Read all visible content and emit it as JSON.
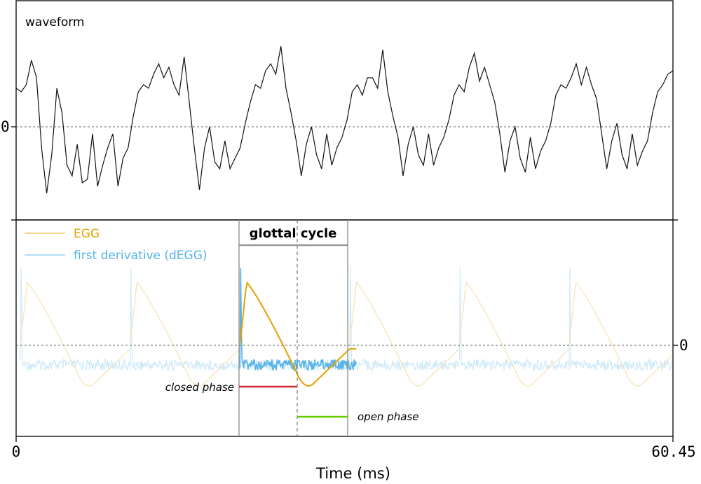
{
  "chart_data": {
    "type": "line",
    "x_axis": {
      "label": "Time (ms)",
      "min": 0,
      "max": 60.45,
      "min_label": "0",
      "max_label": "60.45"
    },
    "waveform": {
      "title": "waveform",
      "zero_label": "0",
      "samples": [
        0.55,
        0.5,
        0.6,
        0.95,
        0.7,
        -0.3,
        -0.95,
        -0.4,
        0.55,
        0.2,
        -0.55,
        -0.7,
        -0.25,
        -0.8,
        -0.75,
        -0.1,
        -0.85,
        -0.55,
        -0.3,
        -0.1,
        -0.85,
        -0.45,
        -0.3,
        0.15,
        0.5,
        0.6,
        0.55,
        0.75,
        0.9,
        0.7,
        0.85,
        0.6,
        0.45,
        1.0,
        0.35,
        -0.3,
        -0.9,
        -0.3,
        0.0,
        -0.5,
        -0.6,
        -0.2,
        -0.6,
        -0.45,
        -0.3,
        0.05,
        0.35,
        0.6,
        0.55,
        0.8,
        0.9,
        0.75,
        1.15,
        0.55,
        0.2,
        -0.2,
        -0.7,
        -0.25,
        0.0,
        -0.4,
        -0.6,
        -0.1,
        -0.55,
        -0.3,
        -0.15,
        0.1,
        0.5,
        0.6,
        0.45,
        0.7,
        0.7,
        0.55,
        1.1,
        0.5,
        0.15,
        -0.15,
        -0.7,
        -0.25,
        0.0,
        -0.4,
        -0.55,
        -0.1,
        -0.55,
        -0.3,
        -0.15,
        0.1,
        0.45,
        0.6,
        0.5,
        0.85,
        1.05,
        0.65,
        0.85,
        0.6,
        0.35,
        -0.1,
        -0.65,
        -0.2,
        0.0,
        -0.45,
        -0.65,
        -0.15,
        -0.6,
        -0.35,
        -0.2,
        0.05,
        0.45,
        0.6,
        0.55,
        0.7,
        0.9,
        0.6,
        0.85,
        0.6,
        0.4,
        -0.1,
        -0.6,
        -0.2,
        0.05,
        -0.4,
        -0.6,
        -0.1,
        -0.55,
        -0.35,
        -0.2,
        0.2,
        0.5,
        0.6,
        0.75,
        0.8
      ]
    },
    "egg": {
      "legend": [
        {
          "label": "EGG",
          "color": "#e6a000"
        },
        {
          "label": "first derivative (dEGG)",
          "color": "#56b4e9"
        }
      ],
      "zero_label": "0",
      "cycle_start_ms": 0.4,
      "period_ms": 10.1,
      "highlight_start_ms": 20.6,
      "highlight_end_ms": 31.3,
      "closing_instant_ms": 20.6,
      "opening_instant_ms": 26.1,
      "next_closing_ms": 30.7
    },
    "annotations": {
      "cycle_label": "glottal cycle",
      "closed_phase": {
        "label": "closed phase",
        "color": "#d62728"
      },
      "open_phase": {
        "label": "open phase",
        "color": "#66cc00"
      }
    }
  }
}
